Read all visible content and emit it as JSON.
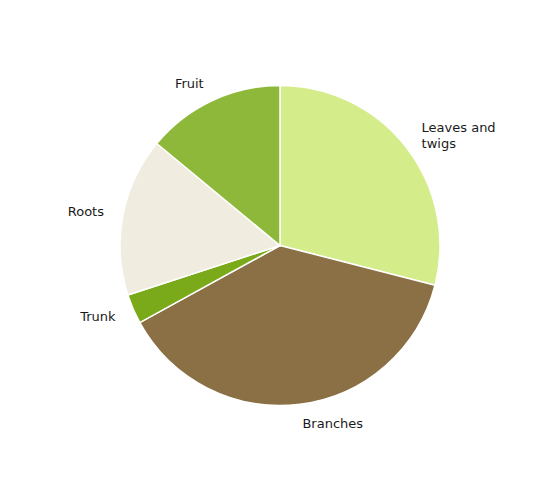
{
  "chart_data": {
    "type": "pie",
    "categories": [
      "Leaves and\ntwigs",
      "Branches",
      "Trunk",
      "Roots",
      "Fruit"
    ],
    "values": [
      29,
      38,
      3,
      16,
      14
    ],
    "colors": [
      "#d4ed8a",
      "#8b7045",
      "#7aaa1a",
      "#f0ede0",
      "#8db83a"
    ]
  }
}
